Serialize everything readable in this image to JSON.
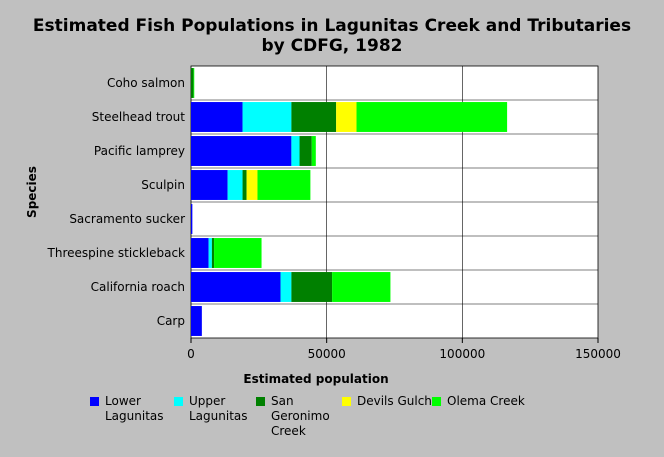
{
  "chart_data": {
    "type": "bar",
    "orientation": "horizontal",
    "stacked": true,
    "title": "Estimated Fish Populations in Lagunitas Creek and Tributaries",
    "subtitle": "by CDFG, 1982",
    "xlabel": "Estimated population",
    "ylabel": "Species",
    "xlim": [
      0,
      150000
    ],
    "xticks": [
      "0",
      "50000",
      "100000",
      "150000"
    ],
    "grid": true,
    "legend_position": "bottom",
    "categories": [
      "Coho salmon",
      "Steelhead trout",
      "Pacific lamprey",
      "Sculpin",
      "Sacramento sucker",
      "Threespine stickleback",
      "California roach",
      "Carp"
    ],
    "series": [
      {
        "name": "Lower Lagunitas",
        "label_lines": [
          "Lower",
          "Lagunitas"
        ],
        "color": "#0000ff",
        "values": [
          0,
          19000,
          37000,
          13500,
          500,
          6500,
          33000,
          4000
        ]
      },
      {
        "name": "Upper Lagunitas",
        "label_lines": [
          "Upper",
          "Lagunitas"
        ],
        "color": "#00ffff",
        "values": [
          0,
          18000,
          3000,
          5500,
          0,
          1200,
          4000,
          0
        ]
      },
      {
        "name": "San Geronimo Creek",
        "label_lines": [
          "San",
          "Geronimo",
          "Creek"
        ],
        "color": "#008000",
        "values": [
          900,
          16500,
          4500,
          1500,
          0,
          800,
          15000,
          0
        ]
      },
      {
        "name": "Devils Gulch",
        "label_lines": [
          "Devils Gulch"
        ],
        "color": "#ffff00",
        "values": [
          0,
          7500,
          0,
          4000,
          0,
          0,
          0,
          0
        ]
      },
      {
        "name": "Olema Creek",
        "label_lines": [
          "Olema Creek"
        ],
        "color": "#00ff00",
        "values": [
          300,
          55500,
          1500,
          19500,
          0,
          17500,
          21500,
          0
        ]
      }
    ]
  }
}
